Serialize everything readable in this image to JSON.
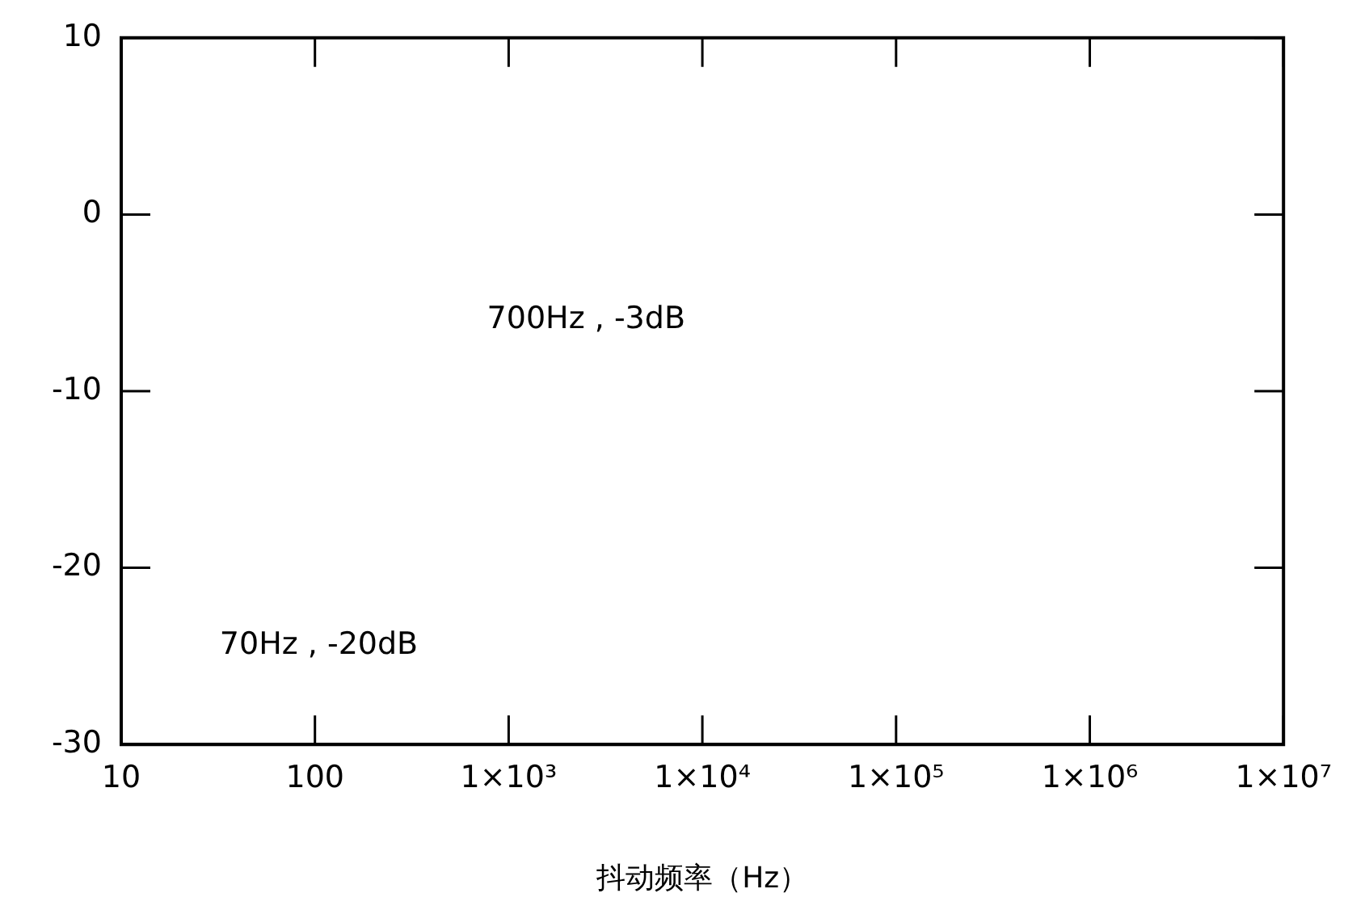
{
  "chart_data": {
    "type": "line",
    "xlabel": "抖动频率（Hz）",
    "log": "x",
    "grid": false,
    "legend": false,
    "xlim": [
      10,
      10000000
    ],
    "xticks": [
      10,
      100,
      {
        "value": 1000,
        "label": "1×10³"
      },
      {
        "value": 10000,
        "label": "1×10⁴"
      },
      {
        "value": 100000,
        "label": "1×10⁵"
      },
      {
        "value": 1000000,
        "label": "1×10⁶"
      },
      {
        "value": 10000000,
        "label": "1×10⁷"
      }
    ],
    "ylim": [
      -30,
      10
    ],
    "yticks": [
      -30,
      -20,
      -10,
      0,
      10
    ],
    "annotations": [
      "700Hz , -3dB",
      "70Hz , -20dB"
    ]
  }
}
